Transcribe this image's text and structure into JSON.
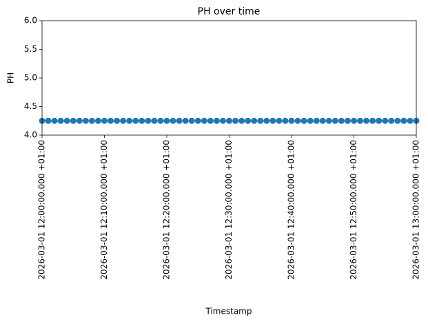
{
  "chart_data": {
    "type": "line",
    "title": "PH over time",
    "xlabel": "Timestamp",
    "ylabel": "PH",
    "x": [
      "2026-03-01 12:00:00.000 +01:00",
      "2026-03-01 12:01:00.000 +01:00",
      "2026-03-01 12:02:00.000 +01:00",
      "2026-03-01 12:03:00.000 +01:00",
      "2026-03-01 12:04:00.000 +01:00",
      "2026-03-01 12:05:00.000 +01:00",
      "2026-03-01 12:06:00.000 +01:00",
      "2026-03-01 12:07:00.000 +01:00",
      "2026-03-01 12:08:00.000 +01:00",
      "2026-03-01 12:09:00.000 +01:00",
      "2026-03-01 12:10:00.000 +01:00",
      "2026-03-01 12:11:00.000 +01:00",
      "2026-03-01 12:12:00.000 +01:00",
      "2026-03-01 12:13:00.000 +01:00",
      "2026-03-01 12:14:00.000 +01:00",
      "2026-03-01 12:15:00.000 +01:00",
      "2026-03-01 12:16:00.000 +01:00",
      "2026-03-01 12:17:00.000 +01:00",
      "2026-03-01 12:18:00.000 +01:00",
      "2026-03-01 12:19:00.000 +01:00",
      "2026-03-01 12:20:00.000 +01:00",
      "2026-03-01 12:21:00.000 +01:00",
      "2026-03-01 12:22:00.000 +01:00",
      "2026-03-01 12:23:00.000 +01:00",
      "2026-03-01 12:24:00.000 +01:00",
      "2026-03-01 12:25:00.000 +01:00",
      "2026-03-01 12:26:00.000 +01:00",
      "2026-03-01 12:27:00.000 +01:00",
      "2026-03-01 12:28:00.000 +01:00",
      "2026-03-01 12:29:00.000 +01:00",
      "2026-03-01 12:30:00.000 +01:00",
      "2026-03-01 12:31:00.000 +01:00",
      "2026-03-01 12:32:00.000 +01:00",
      "2026-03-01 12:33:00.000 +01:00",
      "2026-03-01 12:34:00.000 +01:00",
      "2026-03-01 12:35:00.000 +01:00",
      "2026-03-01 12:36:00.000 +01:00",
      "2026-03-01 12:37:00.000 +01:00",
      "2026-03-01 12:38:00.000 +01:00",
      "2026-03-01 12:39:00.000 +01:00",
      "2026-03-01 12:40:00.000 +01:00",
      "2026-03-01 12:41:00.000 +01:00",
      "2026-03-01 12:42:00.000 +01:00",
      "2026-03-01 12:43:00.000 +01:00",
      "2026-03-01 12:44:00.000 +01:00",
      "2026-03-01 12:45:00.000 +01:00",
      "2026-03-01 12:46:00.000 +01:00",
      "2026-03-01 12:47:00.000 +01:00",
      "2026-03-01 12:48:00.000 +01:00",
      "2026-03-01 12:49:00.000 +01:00",
      "2026-03-01 12:50:00.000 +01:00",
      "2026-03-01 12:51:00.000 +01:00",
      "2026-03-01 12:52:00.000 +01:00",
      "2026-03-01 12:53:00.000 +01:00",
      "2026-03-01 12:54:00.000 +01:00",
      "2026-03-01 12:55:00.000 +01:00",
      "2026-03-01 12:56:00.000 +01:00",
      "2026-03-01 12:57:00.000 +01:00",
      "2026-03-01 12:58:00.000 +01:00",
      "2026-03-01 12:59:00.000 +01:00",
      "2026-03-01 13:00:00.000 +01:00"
    ],
    "values": [
      4.25,
      4.25,
      4.25,
      4.25,
      4.25,
      4.25,
      4.25,
      4.25,
      4.25,
      4.25,
      4.25,
      4.25,
      4.25,
      4.25,
      4.25,
      4.25,
      4.25,
      4.25,
      4.25,
      4.25,
      4.25,
      4.25,
      4.25,
      4.25,
      4.25,
      4.25,
      4.25,
      4.25,
      4.25,
      4.25,
      4.25,
      4.25,
      4.25,
      4.25,
      4.25,
      4.25,
      4.25,
      4.25,
      4.25,
      4.25,
      4.25,
      4.25,
      4.25,
      4.25,
      4.25,
      4.25,
      4.25,
      4.25,
      4.25,
      4.25,
      4.25,
      4.25,
      4.25,
      4.25,
      4.25,
      4.25,
      4.25,
      4.25,
      4.25,
      4.25,
      4.25
    ],
    "color": "#1f77b4",
    "markers": true,
    "xlim": [
      "2026-03-01 12:00:00.000 +01:00",
      "2026-03-01 13:00:00.000 +01:00"
    ],
    "xticks": [
      "2026-03-01 12:00:00.000 +01:00",
      "2026-03-01 12:10:00.000 +01:00",
      "2026-03-01 12:20:00.000 +01:00",
      "2026-03-01 12:30:00.000 +01:00",
      "2026-03-01 12:40:00.000 +01:00",
      "2026-03-01 12:50:00.000 +01:00",
      "2026-03-01 13:00:00.000 +01:00"
    ],
    "ylim": [
      4,
      6
    ],
    "yticks": [
      {
        "value": 4,
        "label": "4.0"
      },
      {
        "value": 4.5,
        "label": "4.5"
      },
      {
        "value": 5,
        "label": "5.0"
      },
      {
        "value": 5.5,
        "label": "5.5"
      },
      {
        "value": 6,
        "label": "6.0"
      }
    ],
    "grid": false
  }
}
